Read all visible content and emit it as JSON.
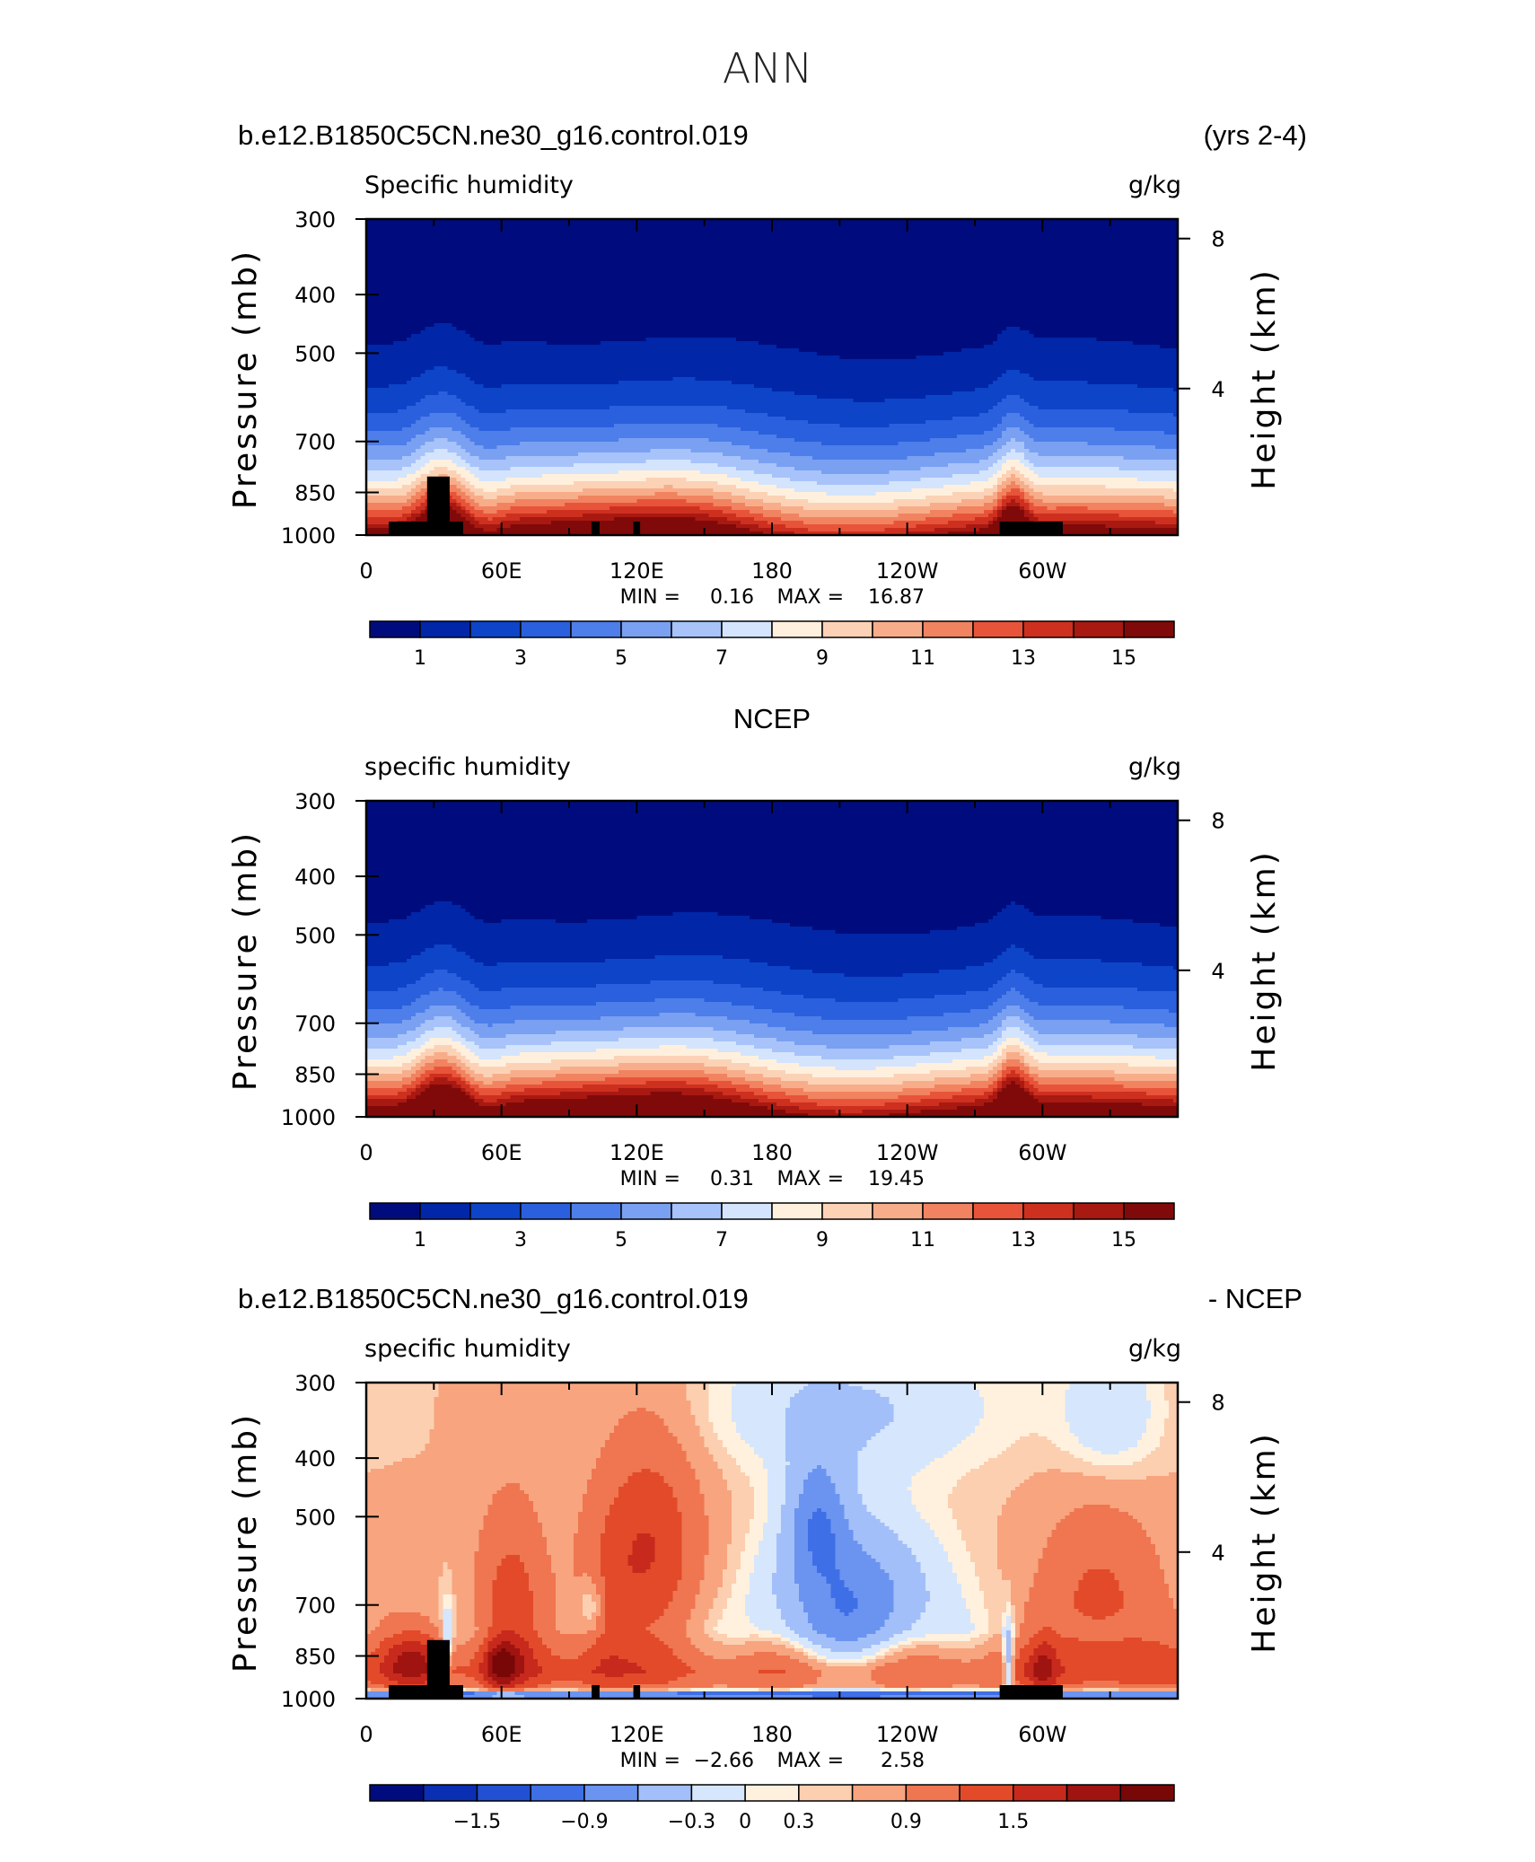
{
  "figure": {
    "title": "ANN"
  },
  "colors": {
    "abs_scale": [
      "#000c7d",
      "#0126a8",
      "#0d44c8",
      "#2a60dd",
      "#4d7ee9",
      "#7aa0f2",
      "#a7c3fa",
      "#d4e4fc",
      "#fff0dd",
      "#fcd2b6",
      "#f8ad8a",
      "#f18360",
      "#e8543a",
      "#ce301f",
      "#a81912",
      "#800a0a"
    ],
    "diff_scale": [
      "#000c7d",
      "#0a2fb2",
      "#2150d2",
      "#3f6fe6",
      "#6b94f1",
      "#a2bff9",
      "#d6e6fd",
      "#fff1dd",
      "#fccfb0",
      "#f7a47f",
      "#ef7650",
      "#e24a2a",
      "#c72a1c",
      "#9f1310",
      "#780707"
    ],
    "topography": "#000000"
  },
  "panels": [
    {
      "header_left": "b.e12.B1850C5CN.ne30_g16.control.019",
      "header_center": "",
      "header_right": "(yrs 2-4)",
      "var_label": "Specific humidity",
      "units": "g/kg",
      "ylabel": "Pressure (mb)",
      "ylabel_right": "Height (km)",
      "min_label": "MIN =",
      "min_value": "0.16",
      "max_label": "MAX =",
      "max_value": "16.87",
      "colorbar_labels": [
        "1",
        "3",
        "5",
        "7",
        "9",
        "11",
        "13",
        "15"
      ],
      "kind": "abs"
    },
    {
      "header_left": "",
      "header_center": "NCEP",
      "header_right": "",
      "var_label": "specific humidity",
      "units": "g/kg",
      "ylabel": "Pressure (mb)",
      "ylabel_right": "Height (km)",
      "min_label": "MIN =",
      "min_value": "0.31",
      "max_label": "MAX =",
      "max_value": "19.45",
      "colorbar_labels": [
        "1",
        "3",
        "5",
        "7",
        "9",
        "11",
        "13",
        "15"
      ],
      "kind": "abs"
    },
    {
      "header_left": "b.e12.B1850C5CN.ne30_g16.control.019",
      "header_center": "",
      "header_right": "- NCEP",
      "var_label": "specific humidity",
      "units": "g/kg",
      "ylabel": "Pressure (mb)",
      "ylabel_right": "Height (km)",
      "min_label": "MIN =",
      "min_value": "−2.66",
      "max_label": "MAX =",
      "max_value": "2.58",
      "colorbar_labels": [
        "−1.5",
        "−0.9",
        "−0.3",
        "0",
        "0.3",
        "0.9",
        "1.5"
      ],
      "kind": "diff"
    }
  ],
  "chart_data": [
    {
      "type": "heatmap",
      "title": "Specific humidity",
      "subtitle": "b.e12.B1850C5CN.ne30_g16.control.019 (yrs 2-4)",
      "xlabel": "",
      "ylabel": "Pressure (mb)",
      "ylabel_right": "Height (km)",
      "x_ticks": [
        "0",
        "60E",
        "120E",
        "180",
        "120W",
        "60W"
      ],
      "x_tick_values_deg": [
        0,
        60,
        120,
        180,
        240,
        300
      ],
      "xlim": [
        0,
        360
      ],
      "y_ticks": [
        300,
        400,
        500,
        700,
        850,
        1000
      ],
      "ylim": [
        1000,
        300
      ],
      "y_scale": "log",
      "right_ticks_km": [
        4,
        8
      ],
      "contour_levels": [
        0,
        1,
        2,
        3,
        4,
        5,
        6,
        7,
        8,
        9,
        10,
        11,
        12,
        13,
        14,
        15
      ],
      "colorbar_ticks": [
        1,
        3,
        5,
        7,
        9,
        11,
        13,
        15
      ],
      "min": 0.16,
      "max": 16.87,
      "units": "g/kg",
      "grid": false
    },
    {
      "type": "heatmap",
      "title": "specific humidity",
      "subtitle": "NCEP",
      "ylabel": "Pressure (mb)",
      "ylabel_right": "Height (km)",
      "x_ticks": [
        "0",
        "60E",
        "120E",
        "180",
        "120W",
        "60W"
      ],
      "x_tick_values_deg": [
        0,
        60,
        120,
        180,
        240,
        300
      ],
      "xlim": [
        0,
        360
      ],
      "y_ticks": [
        300,
        400,
        500,
        700,
        850,
        1000
      ],
      "ylim": [
        1000,
        300
      ],
      "y_scale": "log",
      "right_ticks_km": [
        4,
        8
      ],
      "contour_levels": [
        0,
        1,
        2,
        3,
        4,
        5,
        6,
        7,
        8,
        9,
        10,
        11,
        12,
        13,
        14,
        15
      ],
      "colorbar_ticks": [
        1,
        3,
        5,
        7,
        9,
        11,
        13,
        15
      ],
      "min": 0.31,
      "max": 19.45,
      "units": "g/kg",
      "grid": false
    },
    {
      "type": "heatmap",
      "title": "specific humidity",
      "subtitle": "b.e12.B1850C5CN.ne30_g16.control.019 - NCEP",
      "ylabel": "Pressure (mb)",
      "ylabel_right": "Height (km)",
      "x_ticks": [
        "0",
        "60E",
        "120E",
        "180",
        "120W",
        "60W"
      ],
      "x_tick_values_deg": [
        0,
        60,
        120,
        180,
        240,
        300
      ],
      "xlim": [
        0,
        360
      ],
      "y_ticks": [
        300,
        400,
        500,
        700,
        850,
        1000
      ],
      "ylim": [
        1000,
        300
      ],
      "y_scale": "log",
      "right_ticks_km": [
        4,
        8
      ],
      "contour_levels": [
        -1.8,
        -1.5,
        -1.2,
        -0.9,
        -0.6,
        -0.3,
        -0.1,
        0,
        0.1,
        0.3,
        0.6,
        0.9,
        1.2,
        1.5,
        1.8
      ],
      "colorbar_ticks": [
        -1.5,
        -0.9,
        -0.3,
        0,
        0.3,
        0.9,
        1.5
      ],
      "min": -2.66,
      "max": 2.58,
      "units": "g/kg",
      "grid": false
    }
  ]
}
